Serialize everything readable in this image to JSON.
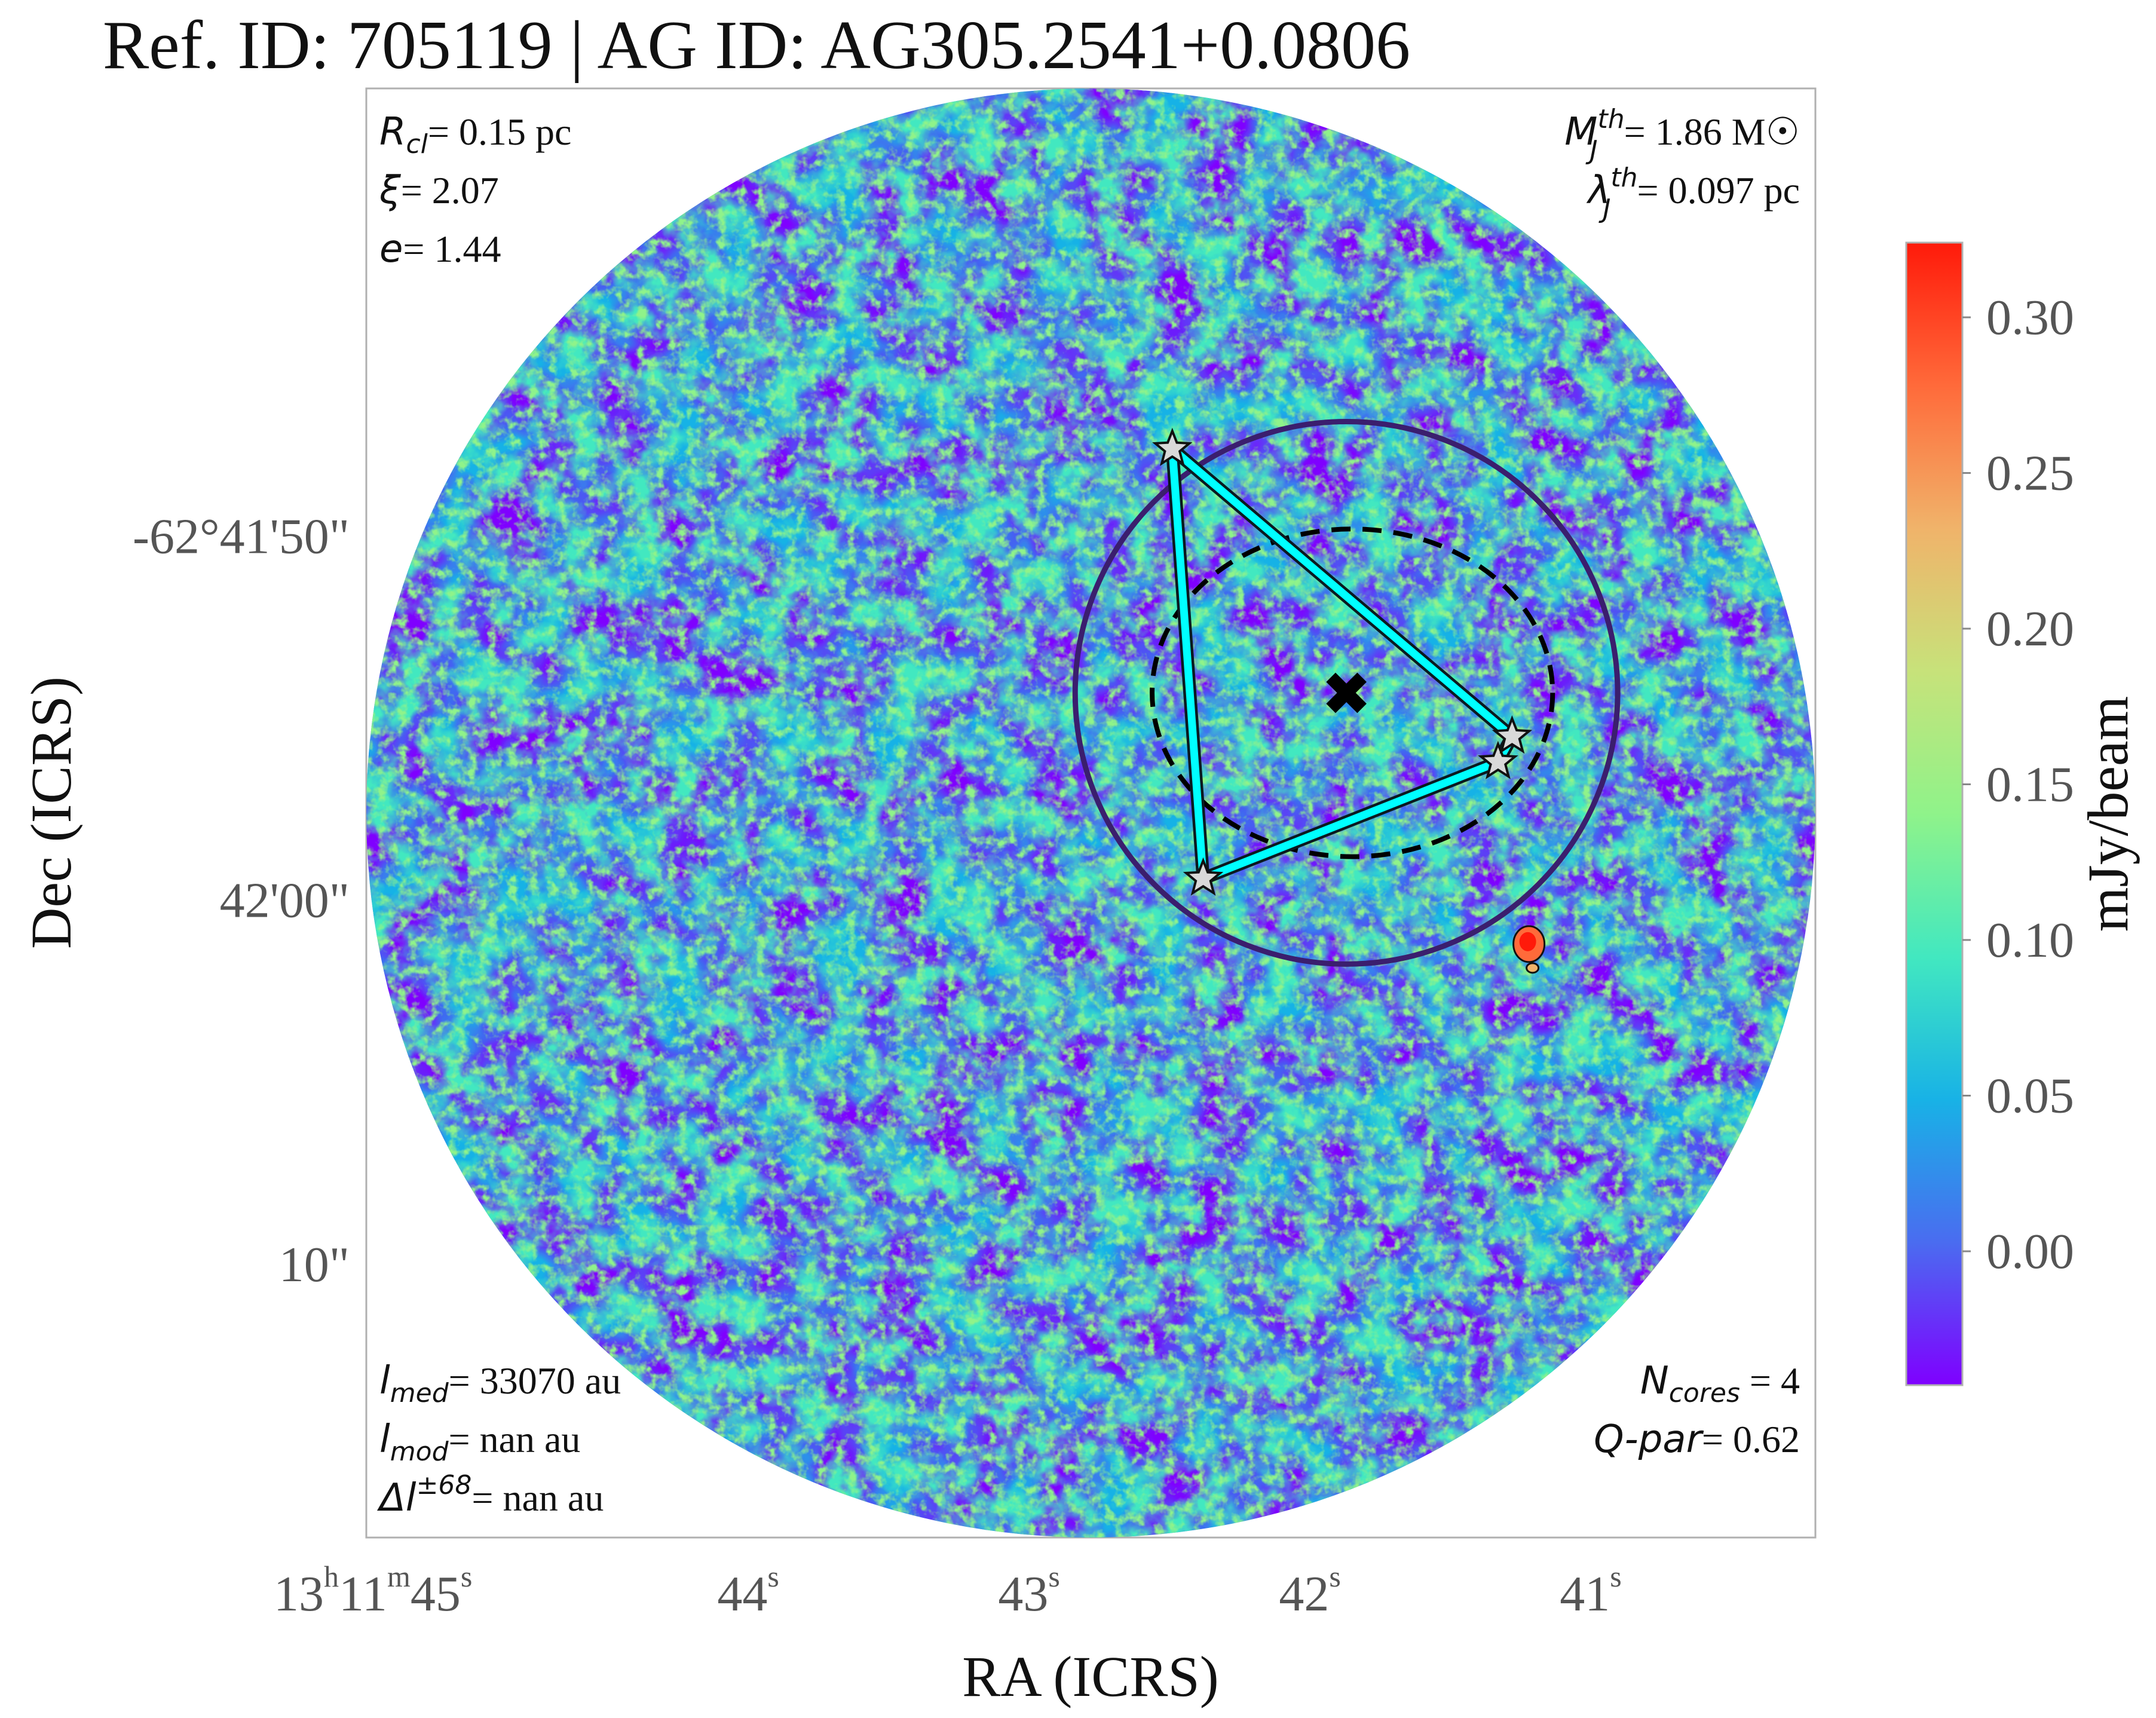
{
  "chart_data": {
    "type": "heatmap",
    "title": "Ref. ID: 705119 | AG ID: AG305.2541+0.0806",
    "xlabel": "RA (ICRS)",
    "ylabel": "Dec (ICRS)",
    "x_ticks": [
      {
        "h": "13",
        "hu": "h",
        "m": "11",
        "mu": "m",
        "s": "45",
        "su": "s",
        "sec": 45
      },
      {
        "s": "44",
        "su": "s",
        "sec": 44
      },
      {
        "s": "43",
        "su": "s",
        "sec": 43
      },
      {
        "s": "42",
        "su": "s",
        "sec": 42
      },
      {
        "s": "41",
        "su": "s",
        "sec": 41
      }
    ],
    "y_ticks": [
      {
        "label": "-62°41'50\"",
        "arcsec": 50
      },
      {
        "label": "42'00\"",
        "arcsec": 60
      },
      {
        "label": "10\"",
        "arcsec": 70
      }
    ],
    "x_range_sec": [
      45.36,
      40.2
    ],
    "y_range_arcsec": [
      37.7,
      77.5
    ],
    "colorbar": {
      "label": "mJy/beam",
      "min": -0.043,
      "max": 0.324,
      "ticks": [
        "0.30",
        "0.25",
        "0.20",
        "0.15",
        "0.10",
        "0.05",
        "0.00"
      ],
      "tick_values": [
        0.3,
        0.25,
        0.2,
        0.15,
        0.1,
        0.05,
        0.0
      ],
      "colormap": "rainbow",
      "stops": [
        "#7f00ff",
        "#4a6cf0",
        "#18b2e6",
        "#42e8c0",
        "#8ff38a",
        "#c7e27a",
        "#f0b36a",
        "#ff6a3a",
        "#ff1a0a"
      ]
    },
    "field_of_view": {
      "shape": "circle",
      "center_sec": 42.78,
      "center_arcsec": 57.6,
      "radius_arcsec": 19.9
    },
    "clump": {
      "center_sec": 41.87,
      "center_arcsec": 54.3,
      "radius_arcsec": 7.45,
      "ellipse_semi_axes_arcsec": [
        5.5,
        4.5
      ],
      "marker": "X",
      "marker_color": "#000000",
      "circle_color": "#3b1e6e"
    },
    "cores": [
      {
        "sec": 42.49,
        "arcsec": 47.6
      },
      {
        "sec": 42.38,
        "arcsec": 59.4
      },
      {
        "sec": 41.33,
        "arcsec": 56.2
      },
      {
        "sec": 41.28,
        "arcsec": 55.5
      }
    ],
    "mst_edges": [
      [
        0,
        1
      ],
      [
        1,
        2
      ],
      [
        0,
        3
      ],
      [
        2,
        3
      ]
    ],
    "mst_color": "#00ffff",
    "bright_source": {
      "sec": 41.22,
      "arcsec": 61.2,
      "peak": 0.32
    },
    "annotations": {
      "top_left": [
        {
          "sym": "R",
          "sub": "cl",
          "sup": "",
          "text": "= 0.15 pc"
        },
        {
          "sym": "ξ",
          "sub": "",
          "sup": "",
          "text": "= 2.07"
        },
        {
          "sym": "e",
          "sub": "",
          "sup": "",
          "text": "= 1.44"
        }
      ],
      "top_right": [
        {
          "sym": "M",
          "sub": "J",
          "sup": "th",
          "text": "= 1.86 M☉"
        },
        {
          "sym": "λ",
          "sub": "J",
          "sup": "th",
          "text": "= 0.097 pc"
        }
      ],
      "bottom_left": [
        {
          "sym": "l",
          "sub": "med",
          "sup": "",
          "text": "= 33070 au"
        },
        {
          "sym": "l",
          "sub": "mod",
          "sup": "",
          "text": "= nan au"
        },
        {
          "sym": "Δl",
          "sub": "",
          "sup": "±68",
          "text": "= nan au"
        }
      ],
      "bottom_right": [
        {
          "sym": "N",
          "sub": "cores",
          "sup": "",
          "text": " = 4"
        },
        {
          "sym": "Q-par",
          "sub": "",
          "sup": "",
          "text": "= 0.62"
        }
      ]
    }
  }
}
